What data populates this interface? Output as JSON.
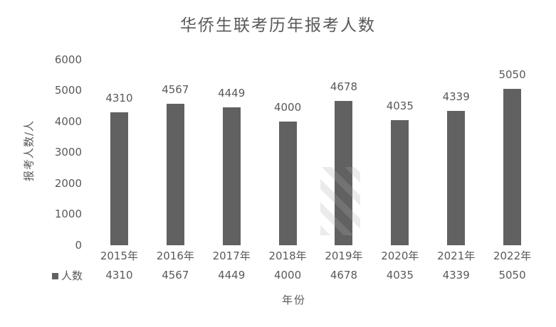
{
  "chart_data": {
    "type": "bar",
    "title": "华侨生联考历年报考人数",
    "xlabel": "年份",
    "ylabel": "报考人数/人",
    "categories": [
      "2015年",
      "2016年",
      "2017年",
      "2018年",
      "2019年",
      "2020年",
      "2021年",
      "2022年"
    ],
    "series": [
      {
        "name": "人数",
        "values": [
          4310,
          4567,
          4449,
          4000,
          4678,
          4035,
          4339,
          5050
        ]
      }
    ],
    "data_labels_shown": true,
    "data_table_shown": true,
    "ylim": [
      0,
      6000
    ],
    "ytick_interval": 1000,
    "yticks": [
      "6000",
      "5000",
      "4000",
      "3000",
      "2000",
      "1000",
      "0"
    ],
    "grid": false,
    "legend_position": "bottom-left",
    "bar_color": "#616161",
    "text_color": "#595959",
    "background_color": "#ffffff"
  }
}
